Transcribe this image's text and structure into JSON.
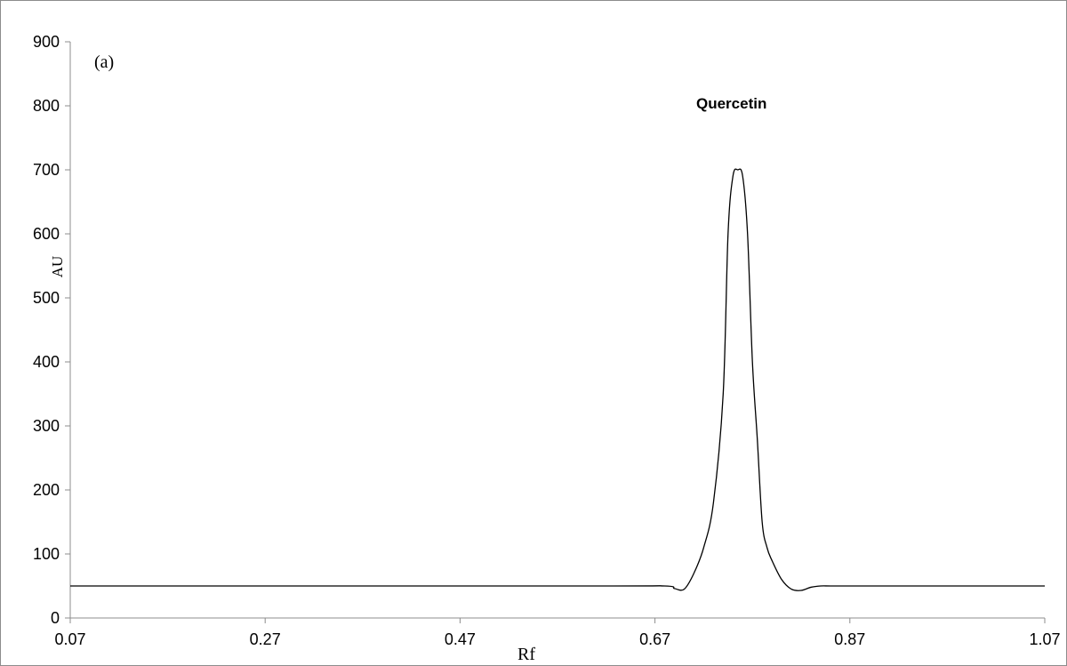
{
  "chart_data": {
    "type": "line",
    "panel_label": "(a)",
    "annotation": "Quercetin",
    "xlabel": "Rf",
    "ylabel": "AU",
    "xlim": [
      0.07,
      1.07
    ],
    "ylim": [
      0,
      900
    ],
    "xticks": [
      "0.07",
      "0.27",
      "0.47",
      "0.67",
      "0.87",
      "1.07"
    ],
    "yticks": [
      "0",
      "100",
      "200",
      "300",
      "400",
      "500",
      "600",
      "700",
      "800",
      "900"
    ],
    "grid": false,
    "series": [
      {
        "x": [
          0.07,
          0.6,
          0.68,
          0.69,
          0.7,
          0.71,
          0.72,
          0.73,
          0.74,
          0.745,
          0.75,
          0.755,
          0.76,
          0.765,
          0.77,
          0.775,
          0.78,
          0.785,
          0.79,
          0.8,
          0.81,
          0.82,
          0.83,
          0.84,
          0.85,
          0.87,
          1.07
        ],
        "y": [
          50,
          50,
          50,
          46,
          45,
          70,
          110,
          180,
          350,
          600,
          690,
          700,
          690,
          600,
          400,
          280,
          150,
          110,
          90,
          60,
          45,
          43,
          48,
          50,
          50,
          50,
          50
        ]
      }
    ],
    "colors": {
      "line": "#000000",
      "axis": "#8c8c8c"
    }
  }
}
